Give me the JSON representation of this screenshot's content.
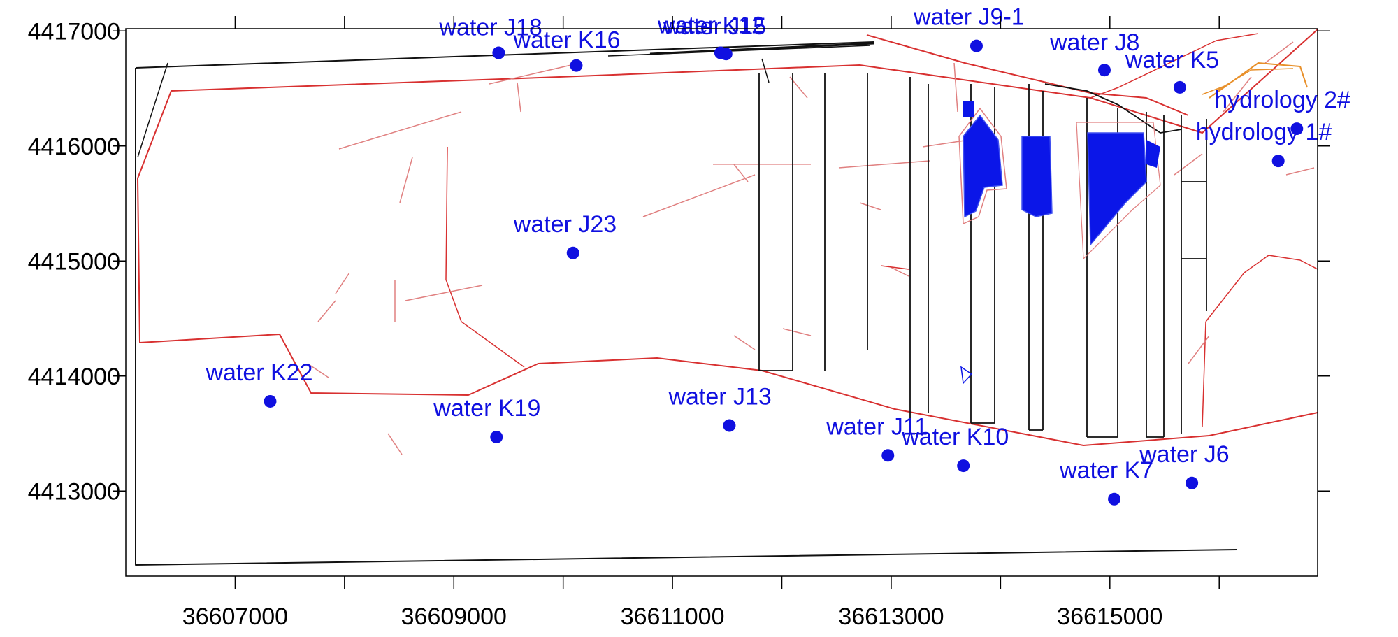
{
  "map": {
    "x_range": [
      36606000,
      36616900
    ],
    "y_range": [
      4412260,
      4417020
    ],
    "x_ticks": {
      "major": [
        36607000,
        36609000,
        36611000,
        36613000,
        36615000
      ],
      "minor": [
        36608000,
        36610000,
        36612000,
        36614000,
        36616000
      ],
      "labels": [
        "36607000",
        "36609000",
        "36611000",
        "36613000",
        "36615000"
      ]
    },
    "y_ticks": {
      "values": [
        4417000,
        4416000,
        4415000,
        4414000,
        4413000
      ],
      "labels": [
        "4417000",
        "4416000",
        "4415000",
        "4414000",
        "4413000"
      ]
    },
    "colors": {
      "well": "#1010e0",
      "boundary": "#d83030",
      "fault": "#e08080",
      "roadway": "#111111",
      "goaf": "#0b16e8",
      "orange": "#e8902a"
    },
    "wells": [
      {
        "label": "water J18",
        "x": 36609410,
        "y": 4416810
      },
      {
        "label": "water K16",
        "x": 36610120,
        "y": 4416700
      },
      {
        "label": "water K12",
        "x": 36611440,
        "y": 4416810
      },
      {
        "label": "water J15",
        "x": 36611490,
        "y": 4416800
      },
      {
        "label": "water J9-1",
        "x": 36613780,
        "y": 4416870
      },
      {
        "label": "water J8",
        "x": 36614950,
        "y": 4416660
      },
      {
        "label": "water K5",
        "x": 36615640,
        "y": 4416510
      },
      {
        "label": "hydrology 2#",
        "x": 36616710,
        "y": 4416150
      },
      {
        "label": "hydrology 1#",
        "x": 36616540,
        "y": 4415870
      },
      {
        "label": "water J23",
        "x": 36610090,
        "y": 4415070
      },
      {
        "label": "water K22",
        "x": 36607320,
        "y": 4413780
      },
      {
        "label": "water K19",
        "x": 36609390,
        "y": 4413470
      },
      {
        "label": "water J13",
        "x": 36611520,
        "y": 4413570
      },
      {
        "label": "water J11",
        "x": 36612970,
        "y": 4413310
      },
      {
        "label": "water K10",
        "x": 36613660,
        "y": 4413220
      },
      {
        "label": "water K7",
        "x": 36615040,
        "y": 4412930
      },
      {
        "label": "water J6",
        "x": 36615750,
        "y": 4413070
      }
    ]
  }
}
